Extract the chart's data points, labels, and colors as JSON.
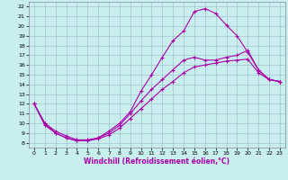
{
  "title": "",
  "xlabel": "Windchill (Refroidissement éolien,°C)",
  "xlim": [
    -0.5,
    23.5
  ],
  "ylim": [
    7.5,
    22.5
  ],
  "xticks": [
    0,
    1,
    2,
    3,
    4,
    5,
    6,
    7,
    8,
    9,
    10,
    11,
    12,
    13,
    14,
    15,
    16,
    17,
    18,
    19,
    20,
    21,
    22,
    23
  ],
  "yticks": [
    8,
    9,
    10,
    11,
    12,
    13,
    14,
    15,
    16,
    17,
    18,
    19,
    20,
    21,
    22
  ],
  "bg_color": "#c8eeee",
  "grid_color": "#a0b8cc",
  "line_color": "#aa00aa",
  "line1_x": [
    0,
    1,
    2,
    3,
    4,
    5,
    6,
    7,
    8,
    9,
    10,
    11,
    12,
    13,
    14,
    15,
    16,
    17,
    18,
    19,
    20,
    21,
    22,
    23
  ],
  "line1_y": [
    12,
    10,
    9.0,
    8.5,
    8.2,
    8.2,
    8.5,
    9.2,
    10.0,
    11.2,
    13.3,
    15.0,
    16.8,
    18.5,
    19.5,
    21.5,
    21.8,
    21.3,
    20.1,
    19.0,
    17.3,
    15.5,
    14.5,
    14.3
  ],
  "line2_x": [
    0,
    1,
    2,
    3,
    4,
    5,
    6,
    7,
    8,
    9,
    10,
    11,
    12,
    13,
    14,
    15,
    16,
    17,
    18,
    19,
    20,
    21,
    22,
    23
  ],
  "line2_y": [
    12,
    10,
    9.2,
    8.7,
    8.3,
    8.3,
    8.5,
    9.0,
    9.8,
    11.0,
    12.3,
    13.5,
    14.5,
    15.5,
    16.5,
    16.8,
    16.5,
    16.5,
    16.8,
    17.0,
    17.5,
    15.5,
    14.5,
    14.3
  ],
  "line3_x": [
    0,
    1,
    2,
    3,
    4,
    5,
    6,
    7,
    8,
    9,
    10,
    11,
    12,
    13,
    14,
    15,
    16,
    17,
    18,
    19,
    20,
    21,
    22,
    23
  ],
  "line3_y": [
    12,
    9.8,
    9.0,
    8.5,
    8.2,
    8.2,
    8.4,
    8.8,
    9.5,
    10.5,
    11.5,
    12.5,
    13.5,
    14.3,
    15.2,
    15.8,
    16.0,
    16.2,
    16.4,
    16.5,
    16.6,
    15.2,
    14.5,
    14.3
  ],
  "tick_fontsize": 4.5,
  "xlabel_fontsize": 5.5
}
